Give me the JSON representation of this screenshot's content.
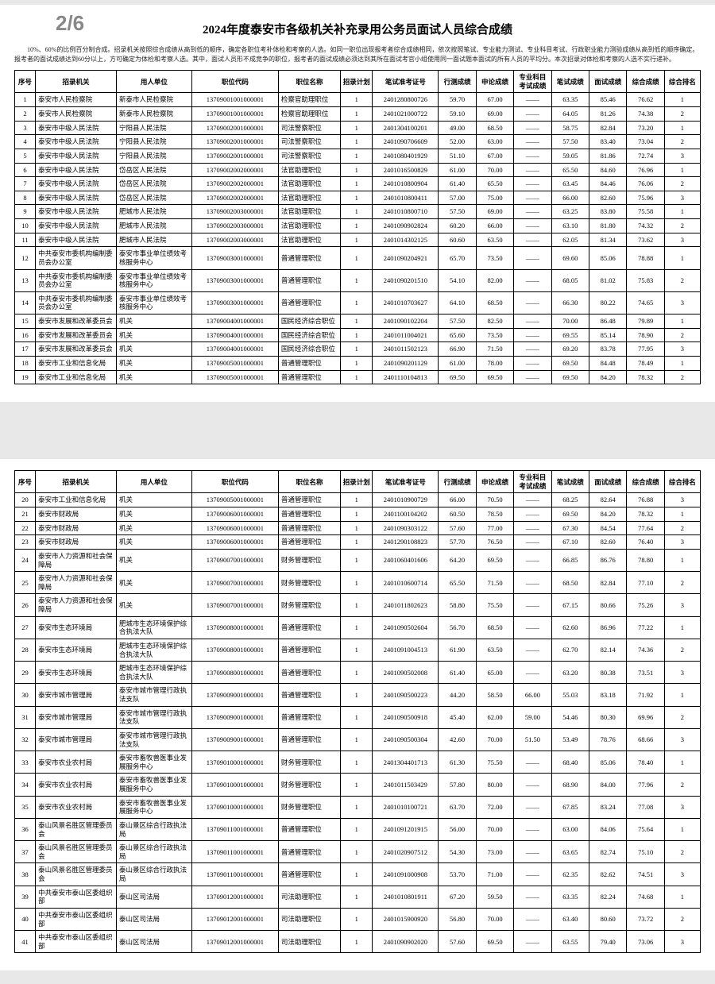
{
  "pageIndicator": "2/6",
  "title": "2024年度泰安市各级机关补充录用公务员面试人员综合成绩",
  "preamble": "10%、60%的比例百分制合成。招录机关按照综合成绩从高到低的顺序，确定各职位考补体检和考察的人选。如同一职位出现报考者综合成绩相同，依次按照笔试、专业能力测试、专业科目考试、行政职业能力测验成绩从高到低的顺序确定。报考者的面试成绩达到60分以上，方可确定为体检和考察人选。其中，面试人员形不成竞争的职位，报考者的面试成绩必须达到其所在面试考官小组使用同一面试题本面试的所有人员的平均分。本次招录对体检和考察的人选不实行递补。",
  "headers": [
    "序号",
    "招录机关",
    "用人单位",
    "职位代码",
    "职位名称",
    "招录计划",
    "笔试准考证号",
    "行测成绩",
    "申论成绩",
    "专业科目考试成绩",
    "笔试成绩",
    "面试成绩",
    "综合成绩",
    "综合排名"
  ],
  "rows1": [
    [
      "1",
      "泰安市人民检察院",
      "新泰市人民检察院",
      "13709001001000001",
      "检察官助理职位",
      "1",
      "2401280800726",
      "59.70",
      "67.00",
      "——",
      "63.35",
      "85.46",
      "76.62",
      "1"
    ],
    [
      "2",
      "泰安市人民检察院",
      "新泰市人民检察院",
      "13709001001000001",
      "检察官助理职位",
      "1",
      "2401021000722",
      "59.10",
      "69.00",
      "——",
      "64.05",
      "81.26",
      "74.38",
      "2"
    ],
    [
      "3",
      "泰安市中级人民法院",
      "宁阳县人民法院",
      "13709002001000001",
      "司法警察职位",
      "1",
      "2401304100201",
      "49.00",
      "68.50",
      "——",
      "58.75",
      "82.84",
      "73.20",
      "1"
    ],
    [
      "4",
      "泰安市中级人民法院",
      "宁阳县人民法院",
      "13709002001000001",
      "司法警察职位",
      "1",
      "2401090706609",
      "52.00",
      "63.00",
      "——",
      "57.50",
      "83.40",
      "73.04",
      "2"
    ],
    [
      "5",
      "泰安市中级人民法院",
      "宁阳县人民法院",
      "13709002001000001",
      "司法警察职位",
      "1",
      "2401080401929",
      "51.10",
      "67.00",
      "——",
      "59.05",
      "81.86",
      "72.74",
      "3"
    ],
    [
      "6",
      "泰安市中级人民法院",
      "岱岳区人民法院",
      "13709002002000001",
      "法官助理职位",
      "1",
      "2401016500829",
      "61.00",
      "70.00",
      "——",
      "65.50",
      "84.60",
      "76.96",
      "1"
    ],
    [
      "7",
      "泰安市中级人民法院",
      "岱岳区人民法院",
      "13709002002000001",
      "法官助理职位",
      "1",
      "2401010800904",
      "61.40",
      "65.50",
      "——",
      "63.45",
      "84.46",
      "76.06",
      "2"
    ],
    [
      "8",
      "泰安市中级人民法院",
      "岱岳区人民法院",
      "13709002002000001",
      "法官助理职位",
      "1",
      "2401010800411",
      "57.00",
      "75.00",
      "——",
      "66.00",
      "82.60",
      "75.96",
      "3"
    ],
    [
      "9",
      "泰安市中级人民法院",
      "肥城市人民法院",
      "13709002003000001",
      "法官助理职位",
      "1",
      "2401010800710",
      "57.50",
      "69.00",
      "——",
      "63.25",
      "83.80",
      "75.58",
      "1"
    ],
    [
      "10",
      "泰安市中级人民法院",
      "肥城市人民法院",
      "13709002003000001",
      "法官助理职位",
      "1",
      "2401090902824",
      "60.20",
      "66.00",
      "——",
      "63.10",
      "81.80",
      "74.32",
      "2"
    ],
    [
      "11",
      "泰安市中级人民法院",
      "肥城市人民法院",
      "13709002003000001",
      "法官助理职位",
      "1",
      "2401014302125",
      "60.60",
      "63.50",
      "——",
      "62.05",
      "81.34",
      "73.62",
      "3"
    ],
    [
      "12",
      "中共泰安市委机构编制委员会办公室",
      "泰安市事业单位绩效考核服务中心",
      "13709003001000001",
      "普通管理职位",
      "1",
      "2401090204921",
      "65.70",
      "73.50",
      "——",
      "69.60",
      "85.06",
      "78.88",
      "1"
    ],
    [
      "13",
      "中共泰安市委机构编制委员会办公室",
      "泰安市事业单位绩效考核服务中心",
      "13709003001000001",
      "普通管理职位",
      "1",
      "2401090201510",
      "54.10",
      "82.00",
      "——",
      "68.05",
      "81.02",
      "75.83",
      "2"
    ],
    [
      "14",
      "中共泰安市委机构编制委员会办公室",
      "泰安市事业单位绩效考核服务中心",
      "13709003001000001",
      "普通管理职位",
      "1",
      "2401010703627",
      "64.10",
      "68.50",
      "——",
      "66.30",
      "80.22",
      "74.65",
      "3"
    ],
    [
      "15",
      "泰安市发展和改革委员会",
      "机关",
      "13709004001000001",
      "国民经济综合职位",
      "1",
      "2401090102204",
      "57.50",
      "82.50",
      "——",
      "70.00",
      "86.48",
      "79.89",
      "1"
    ],
    [
      "16",
      "泰安市发展和改革委员会",
      "机关",
      "13709004001000001",
      "国民经济综合职位",
      "1",
      "2401011004021",
      "65.60",
      "73.50",
      "——",
      "69.55",
      "85.14",
      "78.90",
      "2"
    ],
    [
      "17",
      "泰安市发展和改革委员会",
      "机关",
      "13709004001000001",
      "国民经济综合职位",
      "1",
      "2401011502123",
      "66.90",
      "71.50",
      "——",
      "69.20",
      "83.78",
      "77.95",
      "3"
    ],
    [
      "18",
      "泰安市工业和信息化局",
      "机关",
      "13709005001000001",
      "普通管理职位",
      "1",
      "2401090201129",
      "61.00",
      "78.00",
      "——",
      "69.50",
      "84.48",
      "78.49",
      "1"
    ],
    [
      "19",
      "泰安市工业和信息化局",
      "机关",
      "13709005001000001",
      "普通管理职位",
      "1",
      "2401110104813",
      "69.50",
      "69.50",
      "——",
      "69.50",
      "84.20",
      "78.32",
      "2"
    ]
  ],
  "rows2": [
    [
      "20",
      "泰安市工业和信息化局",
      "机关",
      "13709005001000001",
      "普通管理职位",
      "1",
      "2401010900729",
      "66.00",
      "70.50",
      "——",
      "68.25",
      "82.64",
      "76.88",
      "3"
    ],
    [
      "21",
      "泰安市财政局",
      "机关",
      "13709006001000001",
      "普通管理职位",
      "1",
      "2401100104202",
      "60.50",
      "78.50",
      "——",
      "69.50",
      "84.20",
      "78.32",
      "1"
    ],
    [
      "22",
      "泰安市财政局",
      "机关",
      "13709006001000001",
      "普通管理职位",
      "1",
      "2401090303122",
      "57.60",
      "77.00",
      "——",
      "67.30",
      "84.54",
      "77.64",
      "2"
    ],
    [
      "23",
      "泰安市财政局",
      "机关",
      "13709006001000001",
      "普通管理职位",
      "1",
      "2401290108823",
      "57.70",
      "76.50",
      "——",
      "67.10",
      "82.60",
      "76.40",
      "3"
    ],
    [
      "24",
      "泰安市人力资源和社会保障局",
      "机关",
      "13709007001000001",
      "财务管理职位",
      "1",
      "2401060401606",
      "64.20",
      "69.50",
      "——",
      "66.85",
      "86.76",
      "78.80",
      "1"
    ],
    [
      "25",
      "泰安市人力资源和社会保障局",
      "机关",
      "13709007001000001",
      "财务管理职位",
      "1",
      "2401010600714",
      "65.50",
      "71.50",
      "——",
      "68.50",
      "82.84",
      "77.10",
      "2"
    ],
    [
      "26",
      "泰安市人力资源和社会保障局",
      "机关",
      "13709007001000001",
      "财务管理职位",
      "1",
      "2401011802623",
      "58.80",
      "75.50",
      "——",
      "67.15",
      "80.66",
      "75.26",
      "3"
    ],
    [
      "27",
      "泰安市生态环境局",
      "肥城市生态环境保护综合执法大队",
      "13709008001000001",
      "普通管理职位",
      "1",
      "2401090502604",
      "56.70",
      "68.50",
      "——",
      "62.60",
      "86.96",
      "77.22",
      "1"
    ],
    [
      "28",
      "泰安市生态环境局",
      "肥城市生态环境保护综合执法大队",
      "13709008001000001",
      "普通管理职位",
      "1",
      "2401091004513",
      "61.90",
      "63.50",
      "——",
      "62.70",
      "82.14",
      "74.36",
      "2"
    ],
    [
      "29",
      "泰安市生态环境局",
      "肥城市生态环境保护综合执法大队",
      "13709008001000001",
      "普通管理职位",
      "1",
      "2401090502008",
      "61.40",
      "65.00",
      "——",
      "63.20",
      "80.38",
      "73.51",
      "3"
    ],
    [
      "30",
      "泰安市城市管理局",
      "泰安市城市管理行政执法支队",
      "13709009001000001",
      "普通管理职位",
      "1",
      "2401090500223",
      "44.20",
      "58.50",
      "66.00",
      "55.03",
      "83.18",
      "71.92",
      "1"
    ],
    [
      "31",
      "泰安市城市管理局",
      "泰安市城市管理行政执法支队",
      "13709009001000001",
      "普通管理职位",
      "1",
      "2401090500918",
      "45.40",
      "62.00",
      "59.00",
      "54.46",
      "80.30",
      "69.96",
      "2"
    ],
    [
      "32",
      "泰安市城市管理局",
      "泰安市城市管理行政执法支队",
      "13709009001000001",
      "普通管理职位",
      "1",
      "2401090500304",
      "42.60",
      "70.00",
      "51.50",
      "53.49",
      "78.76",
      "68.66",
      "3"
    ],
    [
      "33",
      "泰安市农业农村局",
      "泰安市畜牧兽医事业发展服务中心",
      "13709010001000001",
      "财务管理职位",
      "1",
      "2401304401713",
      "61.30",
      "75.50",
      "——",
      "68.40",
      "85.06",
      "78.40",
      "1"
    ],
    [
      "34",
      "泰安市农业农村局",
      "泰安市畜牧兽医事业发展服务中心",
      "13709010001000001",
      "财务管理职位",
      "1",
      "2401011503429",
      "57.80",
      "80.00",
      "——",
      "68.90",
      "84.00",
      "77.96",
      "2"
    ],
    [
      "35",
      "泰安市农业农村局",
      "泰安市畜牧兽医事业发展服务中心",
      "13709010001000001",
      "财务管理职位",
      "1",
      "2401010100721",
      "63.70",
      "72.00",
      "——",
      "67.85",
      "83.24",
      "77.08",
      "3"
    ],
    [
      "36",
      "泰山风景名胜区管理委员会",
      "泰山景区综合行政执法局",
      "13709011001000001",
      "普通管理职位",
      "1",
      "2401091201915",
      "56.00",
      "70.00",
      "——",
      "63.00",
      "84.06",
      "75.64",
      "1"
    ],
    [
      "37",
      "泰山风景名胜区管理委员会",
      "泰山景区综合行政执法局",
      "13709011001000001",
      "普通管理职位",
      "1",
      "2401020907512",
      "54.30",
      "73.00",
      "——",
      "63.65",
      "82.74",
      "75.10",
      "2"
    ],
    [
      "38",
      "泰山风景名胜区管理委员会",
      "泰山景区综合行政执法局",
      "13709011001000001",
      "普通管理职位",
      "1",
      "2401091000908",
      "53.70",
      "71.00",
      "——",
      "62.35",
      "82.62",
      "74.51",
      "3"
    ],
    [
      "39",
      "中共泰安市泰山区委组织部",
      "泰山区司法局",
      "13709012001000001",
      "司法助理职位",
      "1",
      "2401010801911",
      "67.20",
      "59.50",
      "——",
      "63.35",
      "82.24",
      "74.68",
      "1"
    ],
    [
      "40",
      "中共泰安市泰山区委组织部",
      "泰山区司法局",
      "13709012001000001",
      "司法助理职位",
      "1",
      "2401015900920",
      "56.80",
      "70.00",
      "——",
      "63.40",
      "80.60",
      "73.72",
      "2"
    ],
    [
      "41",
      "中共泰安市泰山区委组织部",
      "泰山区司法局",
      "13709012001000001",
      "司法助理职位",
      "1",
      "2401090902020",
      "57.60",
      "69.50",
      "——",
      "63.55",
      "79.40",
      "73.06",
      "3"
    ]
  ]
}
